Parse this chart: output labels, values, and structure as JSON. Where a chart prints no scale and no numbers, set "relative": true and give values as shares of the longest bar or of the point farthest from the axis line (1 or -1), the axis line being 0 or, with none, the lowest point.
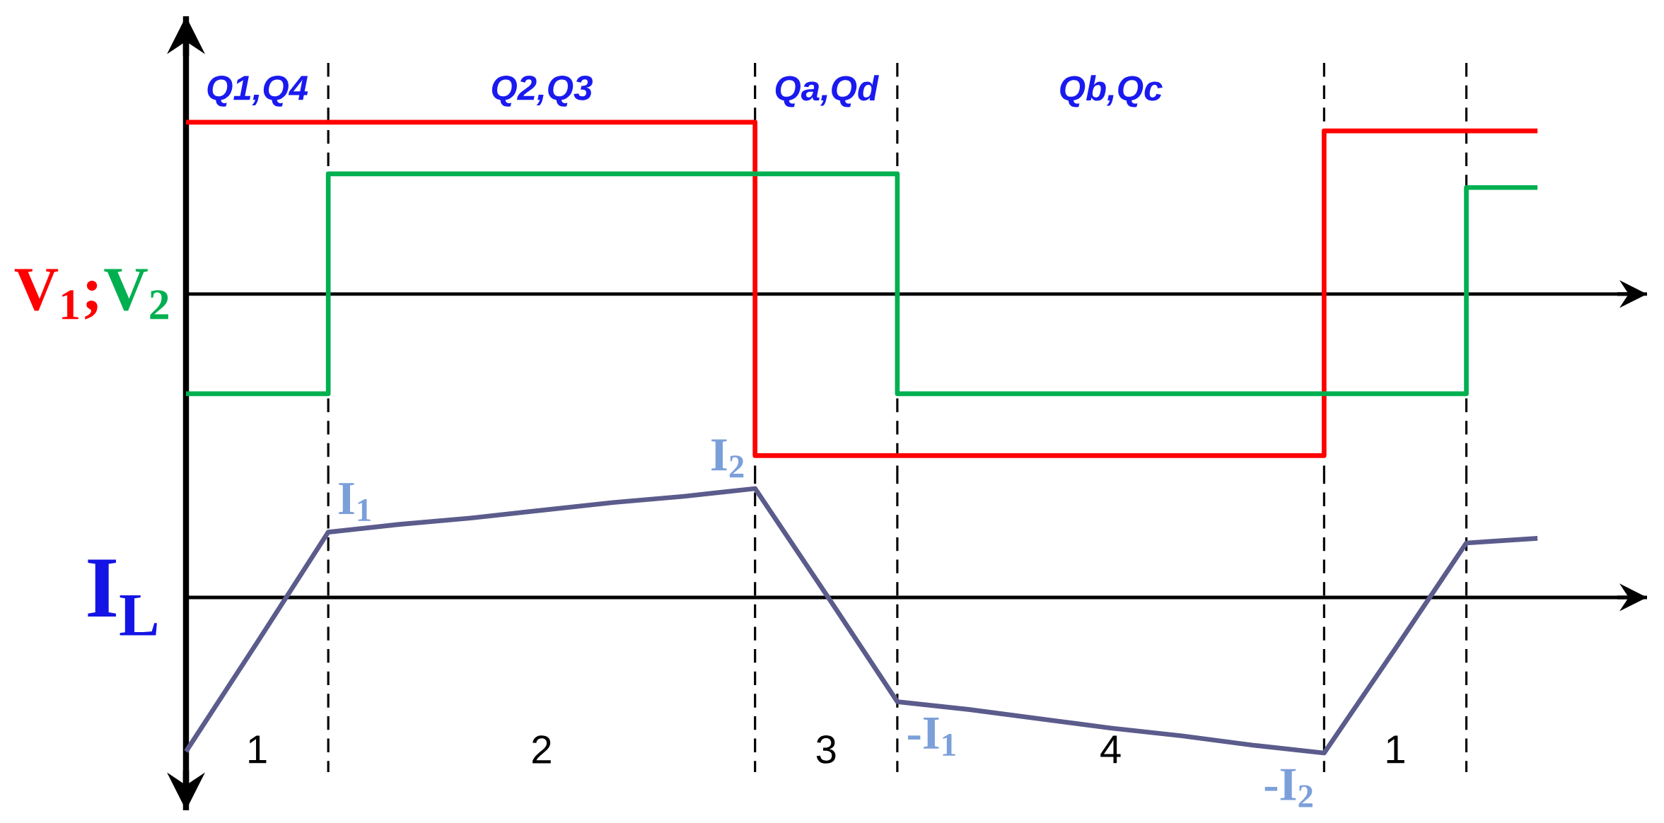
{
  "chart_data": [
    {
      "type": "line",
      "relative": true,
      "grid": "x",
      "categories": [
        null,
        null,
        null,
        null,
        null,
        null,
        null,
        null,
        null,
        null,
        null,
        null,
        null,
        null,
        null,
        null,
        null,
        null,
        null,
        null
      ],
      "series": [
        {
          "name": "V$_{1}$;",
          "type": "step",
          "color": "#ff0000",
          "values": [
            1.0,
            1.0,
            1.0,
            1.0,
            1.0,
            1.0,
            1.0,
            1.0,
            -0.94,
            -0.94,
            -0.94,
            -0.94,
            -0.94,
            -0.94,
            -0.94,
            -0.94,
            0.95,
            0.95,
            0.95,
            0.95
          ]
        },
        {
          "name": "V$_{2}$",
          "type": "step",
          "color": "#00b050",
          "values": [
            -0.58,
            -0.58,
            0.7,
            0.7,
            0.7,
            0.7,
            0.7,
            0.7,
            0.7,
            0.7,
            -0.58,
            -0.58,
            -0.58,
            -0.58,
            -0.58,
            -0.58,
            -0.58,
            -0.58,
            0.62,
            0.62
          ]
        }
      ],
      "annotations": [
        "Q1,Q4",
        "Q2,Q3",
        "Qa,Qd",
        "Qb,Qc"
      ]
    },
    {
      "type": "line",
      "relative": true,
      "grid": "x",
      "ylabel": "I$_{L}$",
      "categories": [
        null,
        null,
        null,
        null,
        null,
        null,
        null,
        null,
        null,
        null,
        null,
        null,
        null,
        null,
        null,
        null,
        null,
        null,
        null,
        null
      ],
      "series": [
        {
          "color": "#5b5b8c",
          "values": [
            -0.99,
            -0.29,
            0.42,
            0.47,
            0.51,
            0.56,
            0.61,
            0.65,
            0.7,
            0.02,
            -0.67,
            -0.72,
            -0.78,
            -0.84,
            -0.89,
            -0.95,
            -1.0,
            -0.33,
            0.35,
            0.38
          ]
        }
      ],
      "annotations": [
        {
          "text": "I$_{1}$",
          "y": 0.42
        },
        {
          "text": "I$_{2}$",
          "y": 0.7
        },
        {
          "text": "-I$_{1}$",
          "y": -0.67
        },
        {
          "text": "-I$_{2}$",
          "y": -1.0
        },
        "1",
        "2",
        "3",
        "4",
        "1"
      ]
    }
  ]
}
